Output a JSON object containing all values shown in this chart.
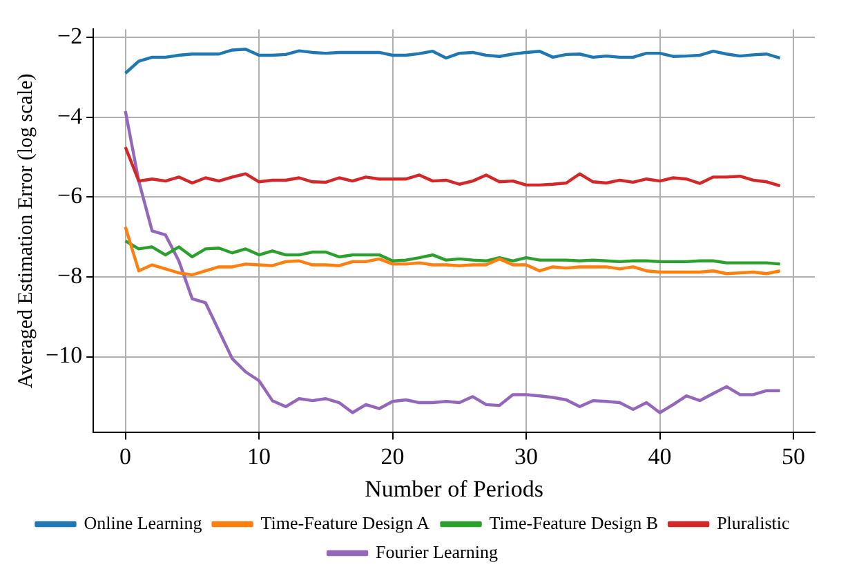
{
  "chart_data": {
    "type": "line",
    "xlabel": "Number of Periods",
    "ylabel": "Averaged Estimation Error (log scale)",
    "x": [
      0,
      1,
      2,
      3,
      4,
      5,
      6,
      7,
      8,
      9,
      10,
      11,
      12,
      13,
      14,
      15,
      16,
      17,
      18,
      19,
      20,
      21,
      22,
      23,
      24,
      25,
      26,
      27,
      28,
      29,
      30,
      31,
      32,
      33,
      34,
      35,
      36,
      37,
      38,
      39,
      40,
      41,
      42,
      43,
      44,
      45,
      46,
      47,
      48,
      49
    ],
    "xlim": [
      -2.4,
      51.6
    ],
    "xticks": [
      0,
      10,
      20,
      30,
      40,
      50
    ],
    "ylim": [
      -11.9,
      -1.8
    ],
    "yticks": [
      {
        "value": -2,
        "label": "−2"
      },
      {
        "value": -4,
        "label": "−4"
      },
      {
        "value": -6,
        "label": "−6"
      },
      {
        "value": -8,
        "label": "−8"
      },
      {
        "value": -10,
        "label": "−10"
      }
    ],
    "grid": true,
    "legend": "bottom",
    "marker": "none",
    "line_style": "solid",
    "series": [
      {
        "name": "Online Learning",
        "color": "#1f77b4",
        "values": [
          -2.9,
          -2.6,
          -2.5,
          -2.5,
          -2.45,
          -2.42,
          -2.42,
          -2.42,
          -2.32,
          -2.3,
          -2.45,
          -2.45,
          -2.43,
          -2.34,
          -2.38,
          -2.4,
          -2.38,
          -2.38,
          -2.38,
          -2.38,
          -2.45,
          -2.45,
          -2.41,
          -2.35,
          -2.52,
          -2.4,
          -2.38,
          -2.45,
          -2.48,
          -2.42,
          -2.38,
          -2.35,
          -2.5,
          -2.43,
          -2.42,
          -2.5,
          -2.47,
          -2.5,
          -2.5,
          -2.4,
          -2.4,
          -2.48,
          -2.47,
          -2.45,
          -2.35,
          -2.42,
          -2.47,
          -2.44,
          -2.42,
          -2.52
        ]
      },
      {
        "name": "Time-Feature Design A",
        "color": "#ff7f0e",
        "values": [
          -6.75,
          -7.85,
          -7.7,
          -7.8,
          -7.9,
          -7.95,
          -7.85,
          -7.75,
          -7.75,
          -7.68,
          -7.7,
          -7.72,
          -7.62,
          -7.6,
          -7.7,
          -7.7,
          -7.72,
          -7.62,
          -7.62,
          -7.55,
          -7.68,
          -7.68,
          -7.65,
          -7.7,
          -7.7,
          -7.72,
          -7.7,
          -7.7,
          -7.55,
          -7.7,
          -7.7,
          -7.85,
          -7.75,
          -7.78,
          -7.75,
          -7.75,
          -7.75,
          -7.8,
          -7.75,
          -7.85,
          -7.88,
          -7.88,
          -7.88,
          -7.88,
          -7.85,
          -7.92,
          -7.9,
          -7.88,
          -7.92,
          -7.85
        ]
      },
      {
        "name": "Time-Feature Design B",
        "color": "#2ca02c",
        "values": [
          -7.1,
          -7.3,
          -7.25,
          -7.45,
          -7.25,
          -7.5,
          -7.3,
          -7.28,
          -7.4,
          -7.3,
          -7.45,
          -7.35,
          -7.45,
          -7.45,
          -7.38,
          -7.38,
          -7.5,
          -7.45,
          -7.45,
          -7.45,
          -7.6,
          -7.58,
          -7.52,
          -7.45,
          -7.58,
          -7.55,
          -7.58,
          -7.6,
          -7.52,
          -7.6,
          -7.52,
          -7.58,
          -7.58,
          -7.58,
          -7.6,
          -7.58,
          -7.6,
          -7.62,
          -7.6,
          -7.6,
          -7.62,
          -7.62,
          -7.62,
          -7.6,
          -7.6,
          -7.65,
          -7.65,
          -7.65,
          -7.65,
          -7.68
        ]
      },
      {
        "name": "Pluralistic",
        "color": "#d62728",
        "values": [
          -4.75,
          -5.6,
          -5.55,
          -5.6,
          -5.5,
          -5.65,
          -5.52,
          -5.6,
          -5.5,
          -5.42,
          -5.62,
          -5.58,
          -5.58,
          -5.52,
          -5.62,
          -5.63,
          -5.52,
          -5.6,
          -5.5,
          -5.55,
          -5.55,
          -5.55,
          -5.45,
          -5.6,
          -5.58,
          -5.68,
          -5.6,
          -5.45,
          -5.62,
          -5.6,
          -5.7,
          -5.7,
          -5.68,
          -5.65,
          -5.42,
          -5.62,
          -5.65,
          -5.58,
          -5.63,
          -5.55,
          -5.6,
          -5.52,
          -5.55,
          -5.66,
          -5.5,
          -5.5,
          -5.48,
          -5.58,
          -5.62,
          -5.72
        ]
      },
      {
        "name": "Fourier Learning",
        "color": "#9467bd",
        "values": [
          -3.85,
          -5.6,
          -6.85,
          -6.95,
          -7.6,
          -8.55,
          -8.65,
          -9.35,
          -10.05,
          -10.38,
          -10.6,
          -11.1,
          -11.25,
          -11.05,
          -11.1,
          -11.05,
          -11.15,
          -11.4,
          -11.2,
          -11.3,
          -11.12,
          -11.08,
          -11.15,
          -11.15,
          -11.12,
          -11.15,
          -11.0,
          -11.2,
          -11.22,
          -10.95,
          -10.95,
          -10.98,
          -11.02,
          -11.08,
          -11.25,
          -11.1,
          -11.12,
          -11.15,
          -11.32,
          -11.15,
          -11.4,
          -11.2,
          -10.98,
          -11.1,
          -10.92,
          -10.75,
          -10.95,
          -10.95,
          -10.85,
          -10.85
        ]
      }
    ]
  }
}
